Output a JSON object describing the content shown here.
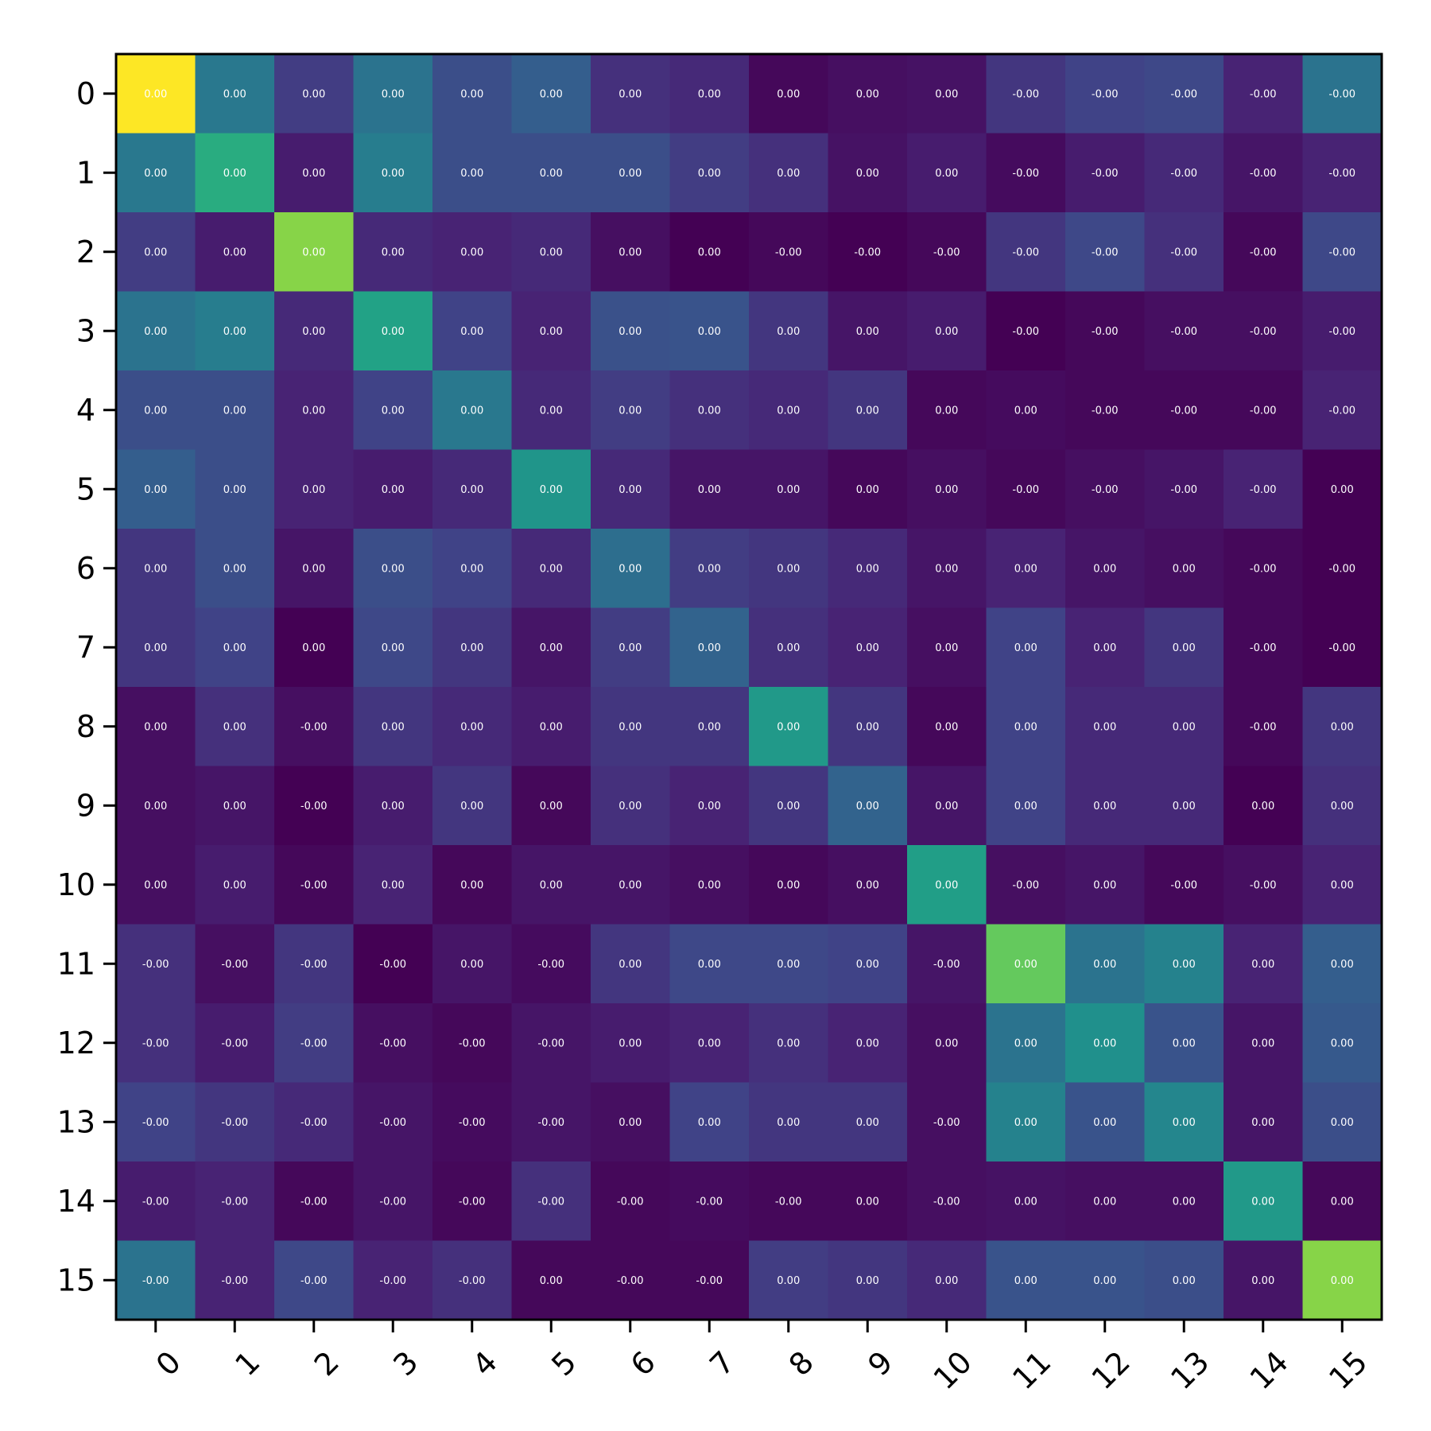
{
  "chart_data": {
    "type": "heatmap",
    "title": "",
    "xlabel": "",
    "ylabel": "",
    "x_categories": [
      "0",
      "1",
      "2",
      "3",
      "4",
      "5",
      "6",
      "7",
      "8",
      "9",
      "10",
      "11",
      "12",
      "13",
      "14",
      "15"
    ],
    "y_categories": [
      "0",
      "1",
      "2",
      "3",
      "4",
      "5",
      "6",
      "7",
      "8",
      "9",
      "10",
      "11",
      "12",
      "13",
      "14",
      "15"
    ],
    "colormap": "viridis",
    "grid": false,
    "color_levels": [
      [
        1.0,
        0.4,
        0.18,
        0.38,
        0.24,
        0.3,
        0.14,
        0.12,
        0.02,
        0.04,
        0.05,
        0.16,
        0.2,
        0.22,
        0.1,
        0.38
      ],
      [
        0.4,
        0.62,
        0.08,
        0.42,
        0.24,
        0.24,
        0.24,
        0.18,
        0.14,
        0.05,
        0.08,
        0.03,
        0.08,
        0.12,
        0.06,
        0.1
      ],
      [
        0.18,
        0.08,
        0.82,
        0.12,
        0.1,
        0.12,
        0.04,
        0.0,
        0.02,
        0.0,
        0.02,
        0.16,
        0.22,
        0.14,
        0.02,
        0.22
      ],
      [
        0.38,
        0.42,
        0.12,
        0.58,
        0.2,
        0.1,
        0.25,
        0.26,
        0.16,
        0.06,
        0.08,
        0.0,
        0.02,
        0.04,
        0.04,
        0.08
      ],
      [
        0.24,
        0.24,
        0.1,
        0.2,
        0.4,
        0.12,
        0.18,
        0.14,
        0.12,
        0.16,
        0.02,
        0.03,
        0.02,
        0.02,
        0.02,
        0.1
      ],
      [
        0.3,
        0.24,
        0.1,
        0.08,
        0.12,
        0.52,
        0.12,
        0.06,
        0.06,
        0.02,
        0.04,
        0.02,
        0.04,
        0.06,
        0.1,
        0.0
      ],
      [
        0.16,
        0.24,
        0.06,
        0.24,
        0.2,
        0.12,
        0.36,
        0.18,
        0.16,
        0.12,
        0.06,
        0.1,
        0.06,
        0.04,
        0.02,
        0.0
      ],
      [
        0.16,
        0.2,
        0.0,
        0.22,
        0.16,
        0.06,
        0.18,
        0.32,
        0.14,
        0.1,
        0.04,
        0.2,
        0.1,
        0.16,
        0.02,
        0.0
      ],
      [
        0.04,
        0.14,
        0.04,
        0.16,
        0.12,
        0.08,
        0.16,
        0.16,
        0.54,
        0.16,
        0.02,
        0.2,
        0.12,
        0.12,
        0.02,
        0.16
      ],
      [
        0.04,
        0.06,
        0.0,
        0.08,
        0.16,
        0.02,
        0.14,
        0.1,
        0.16,
        0.32,
        0.06,
        0.2,
        0.12,
        0.12,
        0.0,
        0.14
      ],
      [
        0.04,
        0.08,
        0.02,
        0.1,
        0.02,
        0.06,
        0.06,
        0.04,
        0.02,
        0.04,
        0.56,
        0.04,
        0.06,
        0.02,
        0.04,
        0.1
      ],
      [
        0.14,
        0.04,
        0.16,
        0.0,
        0.06,
        0.03,
        0.16,
        0.22,
        0.22,
        0.2,
        0.06,
        0.76,
        0.38,
        0.44,
        0.1,
        0.3
      ],
      [
        0.14,
        0.08,
        0.18,
        0.04,
        0.02,
        0.06,
        0.08,
        0.1,
        0.14,
        0.1,
        0.04,
        0.38,
        0.5,
        0.26,
        0.06,
        0.28
      ],
      [
        0.2,
        0.16,
        0.12,
        0.06,
        0.03,
        0.06,
        0.04,
        0.2,
        0.16,
        0.16,
        0.04,
        0.44,
        0.26,
        0.46,
        0.06,
        0.24
      ],
      [
        0.08,
        0.1,
        0.02,
        0.06,
        0.02,
        0.14,
        0.02,
        0.03,
        0.02,
        0.02,
        0.04,
        0.05,
        0.04,
        0.04,
        0.54,
        0.02
      ],
      [
        0.38,
        0.1,
        0.22,
        0.1,
        0.14,
        0.02,
        0.02,
        0.02,
        0.18,
        0.16,
        0.12,
        0.26,
        0.26,
        0.24,
        0.06,
        0.82
      ]
    ],
    "cell_labels": [
      [
        "0.00",
        "0.00",
        "0.00",
        "0.00",
        "0.00",
        "0.00",
        "0.00",
        "0.00",
        "0.00",
        "0.00",
        "0.00",
        "-0.00",
        "-0.00",
        "-0.00",
        "-0.00",
        "-0.00"
      ],
      [
        "0.00",
        "0.00",
        "0.00",
        "0.00",
        "0.00",
        "0.00",
        "0.00",
        "0.00",
        "0.00",
        "0.00",
        "0.00",
        "-0.00",
        "-0.00",
        "-0.00",
        "-0.00",
        "-0.00"
      ],
      [
        "0.00",
        "0.00",
        "0.00",
        "0.00",
        "0.00",
        "0.00",
        "0.00",
        "0.00",
        "-0.00",
        "-0.00",
        "-0.00",
        "-0.00",
        "-0.00",
        "-0.00",
        "-0.00",
        "-0.00"
      ],
      [
        "0.00",
        "0.00",
        "0.00",
        "0.00",
        "0.00",
        "0.00",
        "0.00",
        "0.00",
        "0.00",
        "0.00",
        "0.00",
        "-0.00",
        "-0.00",
        "-0.00",
        "-0.00",
        "-0.00"
      ],
      [
        "0.00",
        "0.00",
        "0.00",
        "0.00",
        "0.00",
        "0.00",
        "0.00",
        "0.00",
        "0.00",
        "0.00",
        "0.00",
        "0.00",
        "-0.00",
        "-0.00",
        "-0.00",
        "-0.00"
      ],
      [
        "0.00",
        "0.00",
        "0.00",
        "0.00",
        "0.00",
        "0.00",
        "0.00",
        "0.00",
        "0.00",
        "0.00",
        "0.00",
        "-0.00",
        "-0.00",
        "-0.00",
        "-0.00",
        "0.00"
      ],
      [
        "0.00",
        "0.00",
        "0.00",
        "0.00",
        "0.00",
        "0.00",
        "0.00",
        "0.00",
        "0.00",
        "0.00",
        "0.00",
        "0.00",
        "0.00",
        "0.00",
        "-0.00",
        "-0.00"
      ],
      [
        "0.00",
        "0.00",
        "0.00",
        "0.00",
        "0.00",
        "0.00",
        "0.00",
        "0.00",
        "0.00",
        "0.00",
        "0.00",
        "0.00",
        "0.00",
        "0.00",
        "-0.00",
        "-0.00"
      ],
      [
        "0.00",
        "0.00",
        "-0.00",
        "0.00",
        "0.00",
        "0.00",
        "0.00",
        "0.00",
        "0.00",
        "0.00",
        "0.00",
        "0.00",
        "0.00",
        "0.00",
        "-0.00",
        "0.00"
      ],
      [
        "0.00",
        "0.00",
        "-0.00",
        "0.00",
        "0.00",
        "0.00",
        "0.00",
        "0.00",
        "0.00",
        "0.00",
        "0.00",
        "0.00",
        "0.00",
        "0.00",
        "0.00",
        "0.00"
      ],
      [
        "0.00",
        "0.00",
        "-0.00",
        "0.00",
        "0.00",
        "0.00",
        "0.00",
        "0.00",
        "0.00",
        "0.00",
        "0.00",
        "-0.00",
        "0.00",
        "-0.00",
        "-0.00",
        "0.00"
      ],
      [
        "-0.00",
        "-0.00",
        "-0.00",
        "-0.00",
        "0.00",
        "-0.00",
        "0.00",
        "0.00",
        "0.00",
        "0.00",
        "-0.00",
        "0.00",
        "0.00",
        "0.00",
        "0.00",
        "0.00"
      ],
      [
        "-0.00",
        "-0.00",
        "-0.00",
        "-0.00",
        "-0.00",
        "-0.00",
        "0.00",
        "0.00",
        "0.00",
        "0.00",
        "0.00",
        "0.00",
        "0.00",
        "0.00",
        "0.00",
        "0.00"
      ],
      [
        "-0.00",
        "-0.00",
        "-0.00",
        "-0.00",
        "-0.00",
        "-0.00",
        "0.00",
        "0.00",
        "0.00",
        "0.00",
        "-0.00",
        "0.00",
        "0.00",
        "0.00",
        "0.00",
        "0.00"
      ],
      [
        "-0.00",
        "-0.00",
        "-0.00",
        "-0.00",
        "-0.00",
        "-0.00",
        "-0.00",
        "-0.00",
        "-0.00",
        "0.00",
        "-0.00",
        "0.00",
        "0.00",
        "0.00",
        "0.00",
        "0.00"
      ],
      [
        "-0.00",
        "-0.00",
        "-0.00",
        "-0.00",
        "-0.00",
        "0.00",
        "-0.00",
        "-0.00",
        "0.00",
        "0.00",
        "0.00",
        "0.00",
        "0.00",
        "0.00",
        "0.00",
        "0.00"
      ]
    ]
  }
}
